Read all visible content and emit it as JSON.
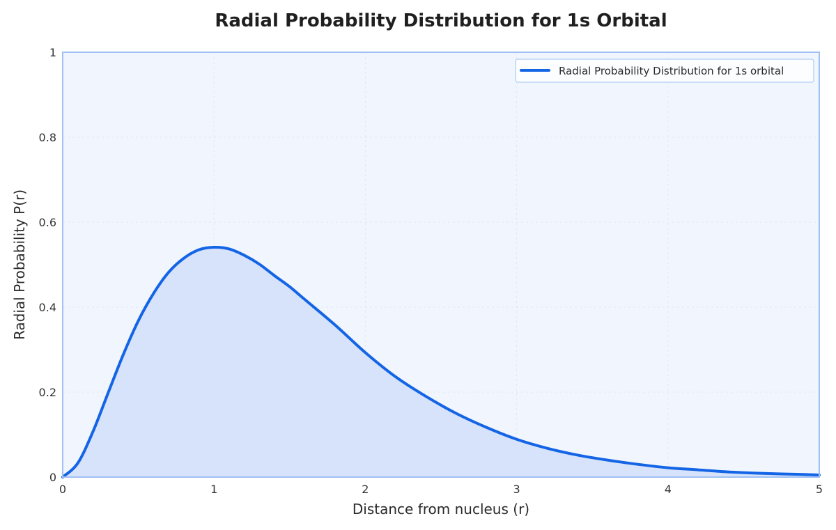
{
  "chart_data": {
    "type": "area",
    "title": "Radial Probability Distribution for 1s Orbital",
    "xlabel": "Distance from nucleus (r)",
    "ylabel": "Radial Probability P(r)",
    "xlim": [
      0,
      5
    ],
    "ylim": [
      0,
      1
    ],
    "x_ticks": [
      "0",
      "1",
      "2",
      "3",
      "4",
      "5"
    ],
    "y_ticks": [
      "0",
      "0.2",
      "0.4",
      "0.6",
      "0.8",
      "1"
    ],
    "grid": true,
    "legend_position": "top-right",
    "series": [
      {
        "name": "Radial Probability Distribution for 1s orbital",
        "color": "#1464e6",
        "fill_color": "#d6e3fa",
        "x": [
          0,
          0.1,
          0.2,
          0.3,
          0.4,
          0.5,
          0.6,
          0.7,
          0.8,
          0.9,
          1.0,
          1.1,
          1.2,
          1.3,
          1.4,
          1.5,
          1.6,
          1.8,
          2.0,
          2.2,
          2.4,
          2.6,
          2.8,
          3.0,
          3.2,
          3.4,
          3.6,
          3.8,
          4.0,
          4.2,
          4.4,
          4.6,
          4.8,
          5.0
        ],
        "y": [
          0,
          0.033,
          0.107,
          0.198,
          0.288,
          0.368,
          0.432,
          0.482,
          0.515,
          0.535,
          0.541,
          0.537,
          0.522,
          0.501,
          0.474,
          0.448,
          0.418,
          0.358,
          0.293,
          0.236,
          0.19,
          0.15,
          0.117,
          0.089,
          0.068,
          0.052,
          0.04,
          0.03,
          0.022,
          0.017,
          0.012,
          0.009,
          0.007,
          0.005
        ]
      }
    ]
  }
}
